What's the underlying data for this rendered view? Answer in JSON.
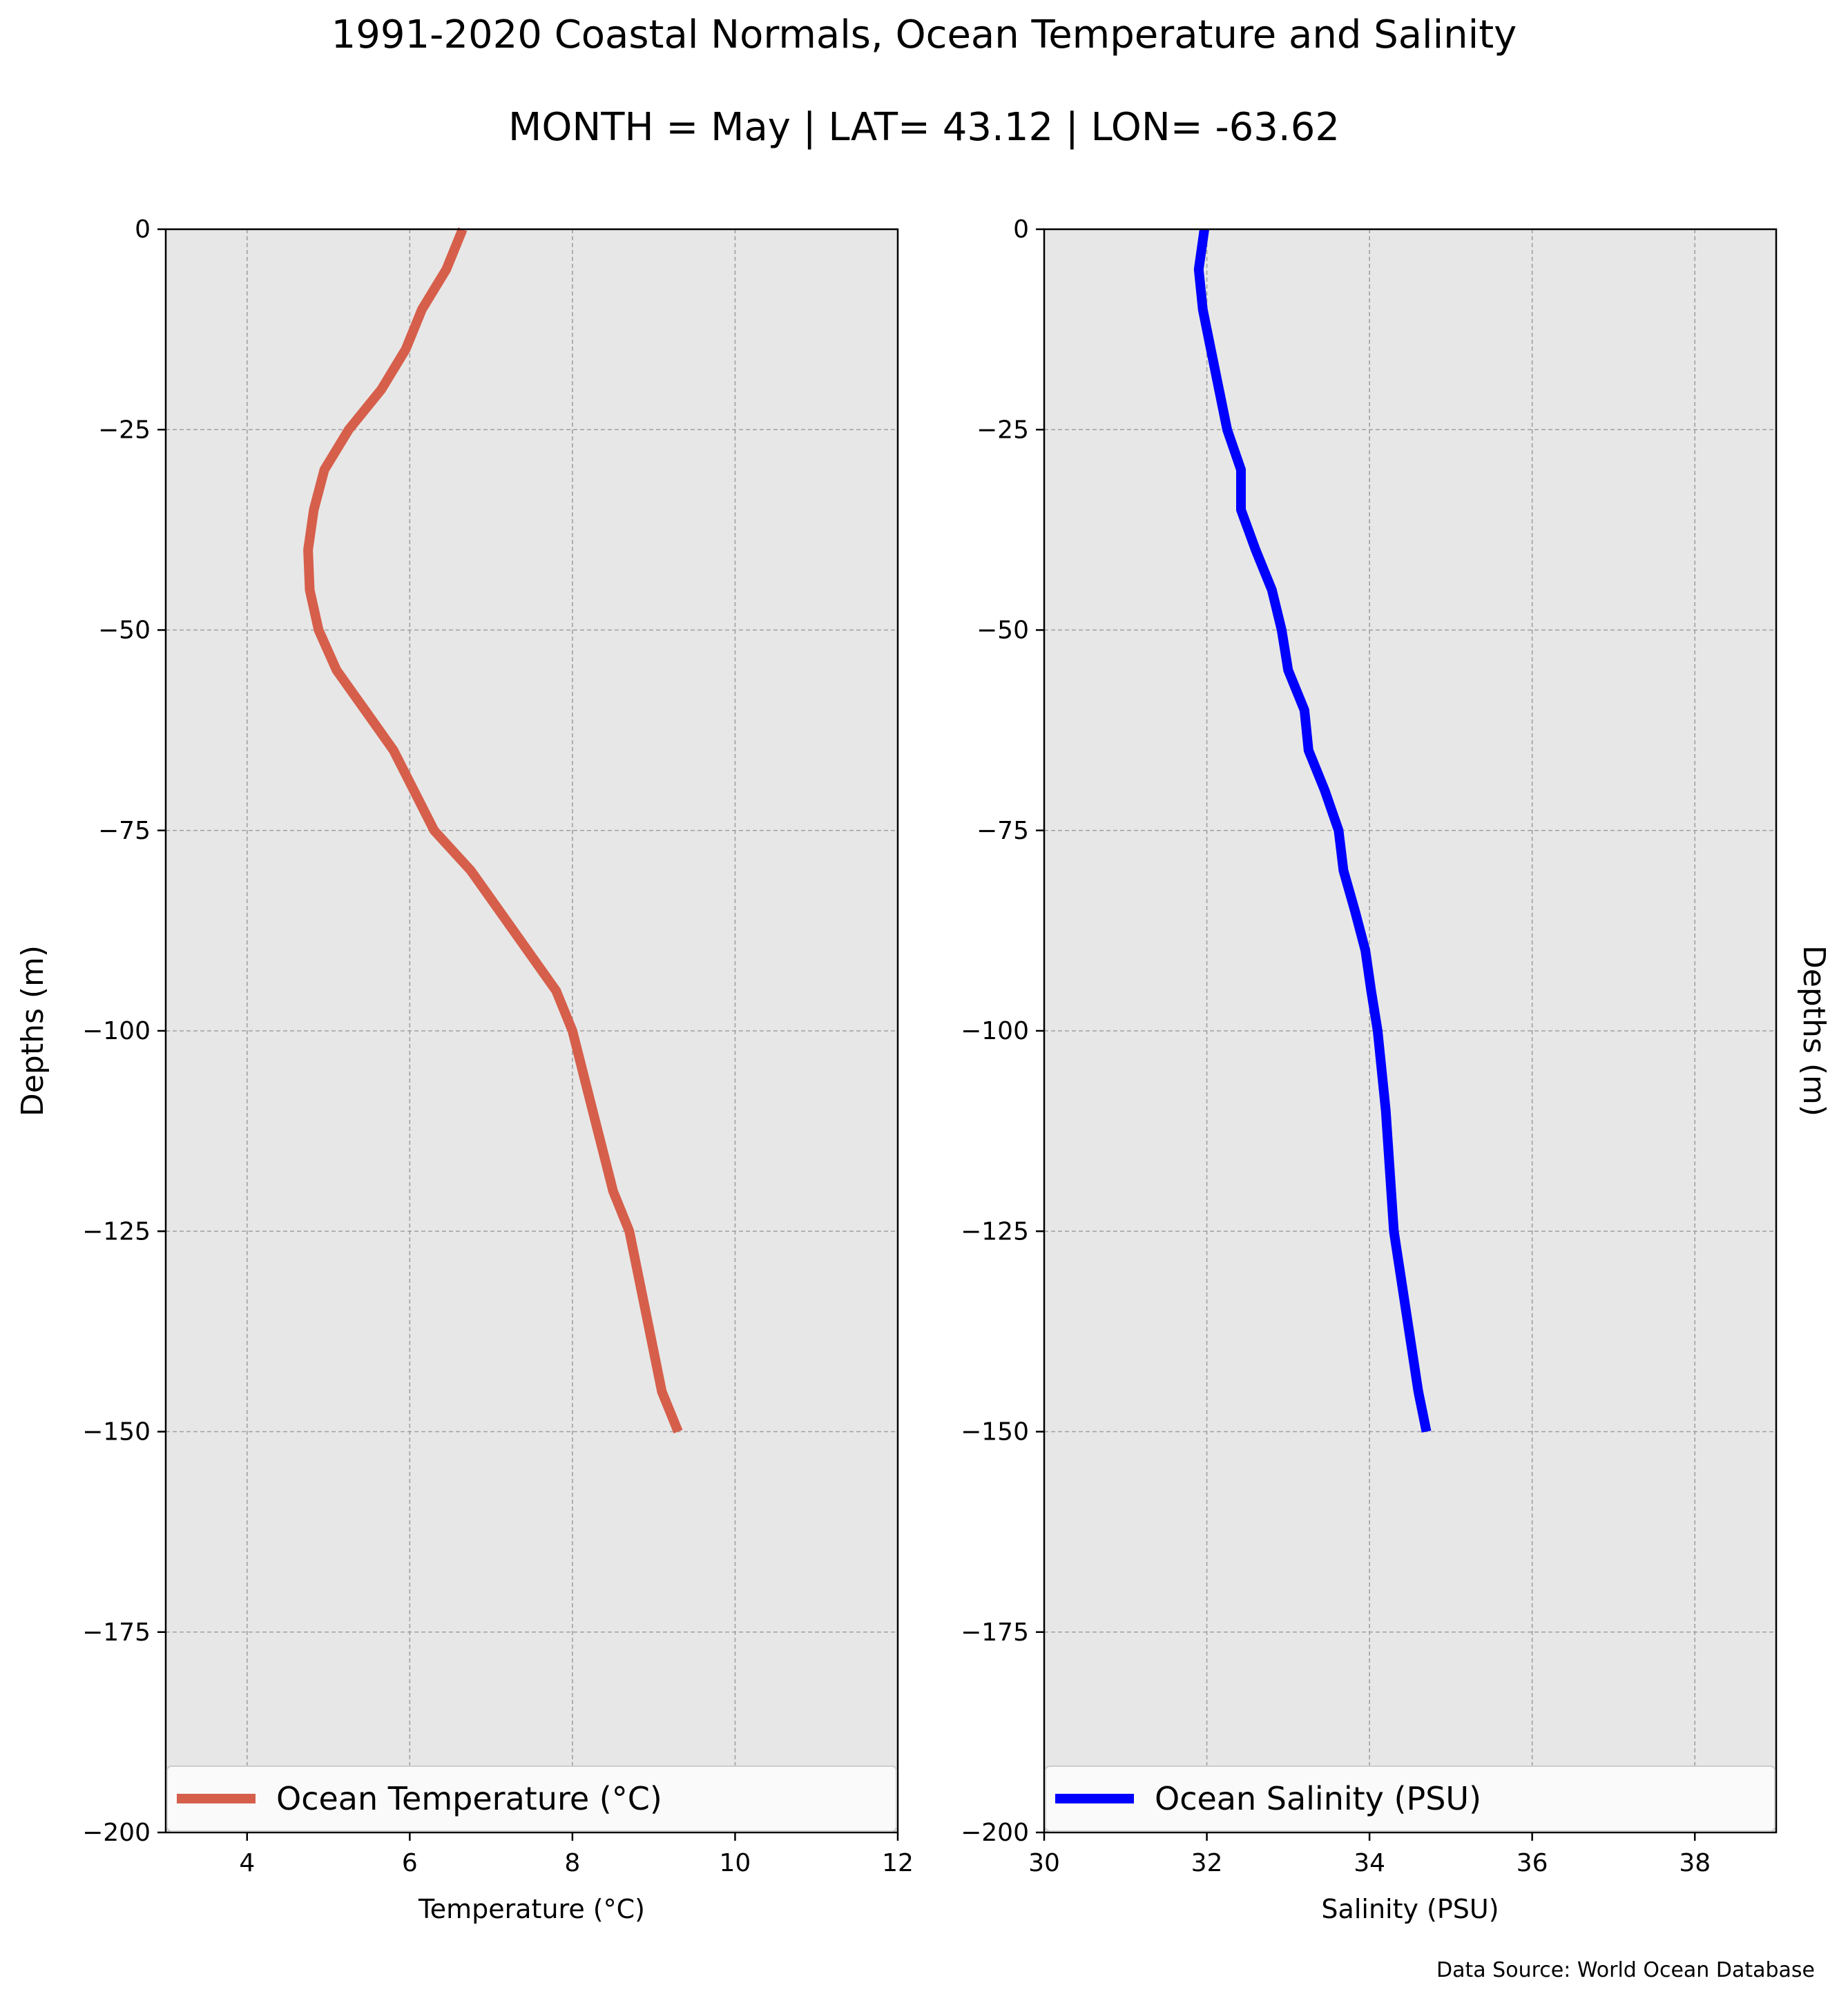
{
  "titles": {
    "line1": "1991-2020 Coastal Normals, Ocean Temperature and Salinity",
    "line2": "MONTH = May | LAT= 43.12 | LON= -63.62"
  },
  "source_note": "Data Source: World Ocean Database",
  "chart_data": [
    {
      "type": "line",
      "xlabel": "Temperature (°C)",
      "ylabel": "Depths (m)",
      "xlim": [
        3,
        12
      ],
      "ylim": [
        -200,
        0
      ],
      "xticks": [
        4,
        6,
        8,
        10,
        12
      ],
      "yticks": [
        0,
        -25,
        -50,
        -75,
        -100,
        -125,
        -150,
        -175,
        -200
      ],
      "ytick_labels": [
        "0",
        "−25",
        "−50",
        "−75",
        "−100",
        "−125",
        "−150",
        "−175",
        "−200"
      ],
      "grid": true,
      "legend": "lower center",
      "colors": {
        "line": "#d65f4b",
        "plot_bg": "#e7e7e7",
        "grid": "#a0a0a0"
      },
      "series": [
        {
          "name": "Ocean Temperature (°C)",
          "x": [
            6.65,
            6.45,
            6.15,
            5.95,
            5.65,
            5.25,
            4.95,
            4.82,
            4.75,
            4.77,
            4.88,
            5.1,
            5.45,
            5.8,
            6.3,
            6.75,
            7.1,
            7.45,
            7.8,
            8.0,
            8.25,
            8.5,
            8.7,
            8.9,
            9.1,
            9.3
          ],
          "y": [
            0,
            -5,
            -10,
            -15,
            -20,
            -25,
            -30,
            -35,
            -40,
            -45,
            -50,
            -55,
            -60,
            -65,
            -75,
            -80,
            -85,
            -90,
            -95,
            -100,
            -110,
            -120,
            -125,
            -135,
            -145,
            -150
          ]
        }
      ]
    },
    {
      "type": "line",
      "xlabel": "Salinity (PSU)",
      "ylabel": "Depths (m)",
      "xlim": [
        30,
        39
      ],
      "ylim": [
        -200,
        0
      ],
      "xticks": [
        30,
        32,
        34,
        36,
        38
      ],
      "yticks": [
        0,
        -25,
        -50,
        -75,
        -100,
        -125,
        -150,
        -175,
        -200
      ],
      "ytick_labels": [
        "0",
        "−25",
        "−50",
        "−75",
        "−100",
        "−125",
        "−150",
        "−175",
        "−200"
      ],
      "grid": true,
      "legend": "lower center",
      "colors": {
        "line": "#0000ff",
        "plot_bg": "#e7e7e7",
        "grid": "#a0a0a0"
      },
      "series": [
        {
          "name": "Ocean Salinity (PSU)",
          "x": [
            31.97,
            31.9,
            31.95,
            32.05,
            32.15,
            32.25,
            32.42,
            32.42,
            32.6,
            32.8,
            32.92,
            33.0,
            33.2,
            33.25,
            33.45,
            33.62,
            33.68,
            33.82,
            33.95,
            34.02,
            34.1,
            34.2,
            34.3,
            34.45,
            34.6,
            34.7
          ],
          "y": [
            0,
            -5,
            -10,
            -15,
            -20,
            -25,
            -30,
            -35,
            -40,
            -45,
            -50,
            -55,
            -60,
            -65,
            -70,
            -75,
            -80,
            -85,
            -90,
            -95,
            -100,
            -110,
            -125,
            -135,
            -145,
            -150
          ]
        }
      ]
    }
  ]
}
